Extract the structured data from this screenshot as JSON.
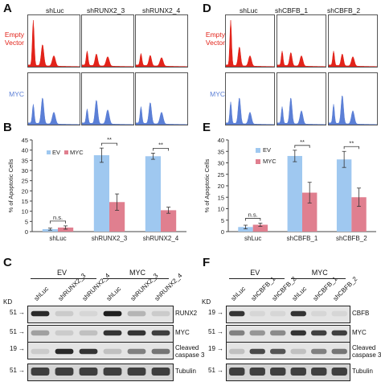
{
  "panels": {
    "A": {
      "letter": "A",
      "columns": [
        "shLuc",
        "shRUNX2_3",
        "shRUNX2_4"
      ],
      "rows": [
        {
          "label": "Empty Vector",
          "color": "#e2231a"
        },
        {
          "label": "MYC",
          "color": "#5b7fd6"
        }
      ]
    },
    "D": {
      "letter": "D",
      "columns": [
        "shLuc",
        "shCBFB_1",
        "shCBFB_2"
      ],
      "rows": [
        {
          "label": "Empty Vector",
          "color": "#e2231a"
        },
        {
          "label": "MYC",
          "color": "#5b7fd6"
        }
      ]
    },
    "B": {
      "letter": "B",
      "chart_data": {
        "type": "bar",
        "categories": [
          "shLuc",
          "shRUNX2_3",
          "shRUNX2_4"
        ],
        "series": [
          {
            "name": "EV",
            "color": "#9fc8f0",
            "values": [
              1.2,
              37.5,
              37.0
            ],
            "errors": [
              0.5,
              3.5,
              1.5
            ]
          },
          {
            "name": "MYC",
            "color": "#e07f8f",
            "values": [
              2.0,
              14.5,
              10.5
            ],
            "errors": [
              0.8,
              4.0,
              1.5
            ]
          }
        ],
        "ylabel": "% of Apoptotic Cells",
        "ylim": [
          0,
          45
        ],
        "yticks": [
          0,
          5,
          10,
          15,
          20,
          25,
          30,
          35,
          40,
          45
        ],
        "significance": [
          "n.s.",
          "**",
          "**"
        ],
        "legend": "top-left"
      }
    },
    "E": {
      "letter": "E",
      "chart_data": {
        "type": "bar",
        "categories": [
          "shLuc",
          "shCBFB_1",
          "shCBFB_2"
        ],
        "series": [
          {
            "name": "EV",
            "color": "#9fc8f0",
            "values": [
              2.0,
              33.0,
              31.5
            ],
            "errors": [
              0.8,
              2.5,
              3.5
            ]
          },
          {
            "name": "MYC",
            "color": "#e07f8f",
            "values": [
              3.0,
              17.0,
              15.0
            ],
            "errors": [
              0.7,
              4.5,
              4.0
            ]
          }
        ],
        "ylabel": "% of Apoptotic Cells",
        "ylim": [
          0,
          40
        ],
        "yticks": [
          0,
          5,
          10,
          15,
          20,
          25,
          30,
          35,
          40
        ],
        "significance": [
          "n.s.",
          "**",
          "**"
        ],
        "legend": "top-left"
      }
    },
    "C": {
      "letter": "C",
      "kd": "KD",
      "groups": [
        "EV",
        "MYC"
      ],
      "lanes": [
        "shLuc",
        "shRUNX2_3",
        "shRUNX2_4",
        "shLuc",
        "shRUNX2_3",
        "shRUNX2_4"
      ],
      "blots": [
        {
          "mw": "51",
          "protein": "RUNX2"
        },
        {
          "mw": "51",
          "protein": "MYC"
        },
        {
          "mw": "19",
          "protein": "Cleaved caspase 3"
        },
        {
          "mw": "51",
          "protein": "Tubulin"
        }
      ]
    },
    "F": {
      "letter": "F",
      "kd": "KD",
      "groups": [
        "EV",
        "MYC"
      ],
      "lanes": [
        "shLuc",
        "shCBFB_1",
        "shCBFB_2",
        "shLuc",
        "shCBFB_1",
        "shCBFB_2"
      ],
      "blots": [
        {
          "mw": "19",
          "protein": "CBFB"
        },
        {
          "mw": "51",
          "protein": "MYC"
        },
        {
          "mw": "19",
          "protein": "Cleaved caspase 3"
        },
        {
          "mw": "51",
          "protein": "Tubulin"
        }
      ]
    }
  }
}
